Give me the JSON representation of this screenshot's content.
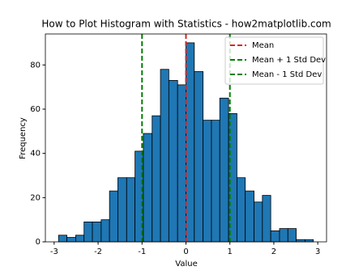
{
  "chart_data": {
    "type": "histogram",
    "title": "How to Plot Histogram with Statistics - how2matplotlib.com",
    "x_label": "Value",
    "y_label": "Frequency",
    "bins": [
      -2.9,
      -2.71,
      -2.51,
      -2.32,
      -2.13,
      -1.93,
      -1.74,
      -1.55,
      -1.35,
      -1.16,
      -0.97,
      -0.77,
      -0.58,
      -0.39,
      -0.19,
      0,
      0.19,
      0.39,
      0.58,
      0.77,
      0.97,
      1.16,
      1.35,
      1.55,
      1.74,
      1.93,
      2.13,
      2.32,
      2.51,
      2.71,
      2.9
    ],
    "counts": [
      3,
      2,
      3,
      9,
      9,
      10,
      23,
      29,
      29,
      41,
      49,
      57,
      78,
      73,
      71,
      90,
      77,
      55,
      55,
      65,
      58,
      29,
      23,
      18,
      21,
      5,
      6,
      6,
      1,
      1
    ],
    "color": "#1f77b4",
    "edge_color": "#000000",
    "vlines": [
      {
        "name": "Mean",
        "value": 0,
        "color": "#d62728"
      },
      {
        "name": "Mean + 1 Std Dev",
        "value": 1,
        "color": "#008000"
      },
      {
        "name": "Mean - 1 Std Dev",
        "value": -1,
        "color": "#008000"
      }
    ],
    "xlim": [
      -3.2,
      3.2
    ],
    "ylim": [
      0,
      94
    ],
    "xticks": [
      -3,
      -2,
      -1,
      0,
      1,
      2,
      3
    ],
    "yticks": [
      0,
      20,
      40,
      60,
      80
    ],
    "legend": "upper right",
    "grid": false
  }
}
